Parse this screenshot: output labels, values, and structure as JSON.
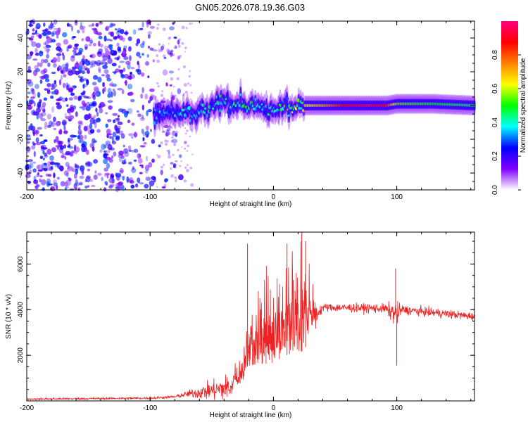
{
  "title": "GN05.2026.078.19.36.G03",
  "chart_data": [
    {
      "type": "heatmap",
      "id": "spectrogram",
      "xlabel": "Height of straight line (km)",
      "ylabel": "Frequency (Hz)",
      "xlim": [
        -200,
        163
      ],
      "ylim": [
        -50,
        50
      ],
      "xticks": [
        -200,
        -100,
        0,
        100
      ],
      "yticks": [
        -40,
        -20,
        0,
        20,
        40
      ],
      "colorbar": {
        "label": "Normalized spectral amplitude",
        "range": [
          0,
          1
        ],
        "ticks": [
          "0.0",
          "0.2",
          "0.4",
          "0.6",
          "0.8"
        ],
        "colormap": [
          "#ffffff",
          "#8000ff",
          "#0000ff",
          "#00ffff",
          "#00ff00",
          "#ffff00",
          "#ff8000",
          "#ff0000",
          "#ff0080"
        ]
      },
      "ridge": [
        {
          "x": -95,
          "y": -5,
          "amp": 0.3
        },
        {
          "x": -80,
          "y": -4,
          "amp": 0.35
        },
        {
          "x": -65,
          "y": -6,
          "amp": 0.35
        },
        {
          "x": -50,
          "y": -1,
          "amp": 0.4
        },
        {
          "x": -40,
          "y": 2,
          "amp": 0.45
        },
        {
          "x": -25,
          "y": 0,
          "amp": 0.45
        },
        {
          "x": -10,
          "y": -2,
          "amp": 0.4
        },
        {
          "x": 0,
          "y": -3,
          "amp": 0.4
        },
        {
          "x": 10,
          "y": 0,
          "amp": 0.45
        },
        {
          "x": 25,
          "y": 0,
          "amp": 0.6
        },
        {
          "x": 45,
          "y": 0,
          "amp": 0.75
        },
        {
          "x": 60,
          "y": 0,
          "amp": 0.9
        },
        {
          "x": 80,
          "y": 0,
          "amp": 0.95
        },
        {
          "x": 92,
          "y": 0,
          "amp": 0.85
        },
        {
          "x": 100,
          "y": 1,
          "amp": 0.55
        },
        {
          "x": 130,
          "y": 1,
          "amp": 0.5
        },
        {
          "x": 163,
          "y": 0,
          "amp": 0.45
        }
      ]
    },
    {
      "type": "line",
      "id": "snr",
      "xlabel": "Height of straight line (km)",
      "ylabel": "SNR (10 * v/v)",
      "xlim": [
        -200,
        163
      ],
      "ylim": [
        0,
        7400
      ],
      "xticks": [
        -200,
        -100,
        0,
        100
      ],
      "yticks": [
        2000,
        4000,
        6000
      ],
      "color": "#ee2222",
      "envelope": [
        {
          "x": -200,
          "base": 80,
          "spread": 60
        },
        {
          "x": -100,
          "base": 120,
          "spread": 70
        },
        {
          "x": -80,
          "base": 180,
          "spread": 80
        },
        {
          "x": -70,
          "base": 300,
          "spread": 200
        },
        {
          "x": -50,
          "base": 450,
          "spread": 600
        },
        {
          "x": -35,
          "base": 600,
          "spread": 900
        },
        {
          "x": -25,
          "base": 800,
          "spread": 1400
        },
        {
          "x": -22,
          "base": 1500,
          "spread": 2400
        },
        {
          "x": -10,
          "base": 1600,
          "spread": 4000
        },
        {
          "x": 0,
          "base": 1600,
          "spread": 4800
        },
        {
          "x": 10,
          "base": 2000,
          "spread": 4500
        },
        {
          "x": 25,
          "base": 2200,
          "spread": 5000
        },
        {
          "x": 35,
          "base": 3800,
          "spread": 600
        },
        {
          "x": 40,
          "base": 4100,
          "spread": 250
        },
        {
          "x": 90,
          "base": 4050,
          "spread": 300
        },
        {
          "x": 100,
          "base": 3800,
          "spread": 800
        },
        {
          "x": 104,
          "base": 4000,
          "spread": 300
        },
        {
          "x": 163,
          "base": 3700,
          "spread": 250
        }
      ],
      "peaks": [
        {
          "x": -21,
          "y": 6900
        },
        {
          "x": 11,
          "y": 6900
        },
        {
          "x": 23,
          "y": 7400
        },
        {
          "x": 26,
          "y": 7000
        },
        {
          "x": 99,
          "y": 5800
        },
        {
          "x": 100,
          "y": 1550
        }
      ]
    }
  ]
}
